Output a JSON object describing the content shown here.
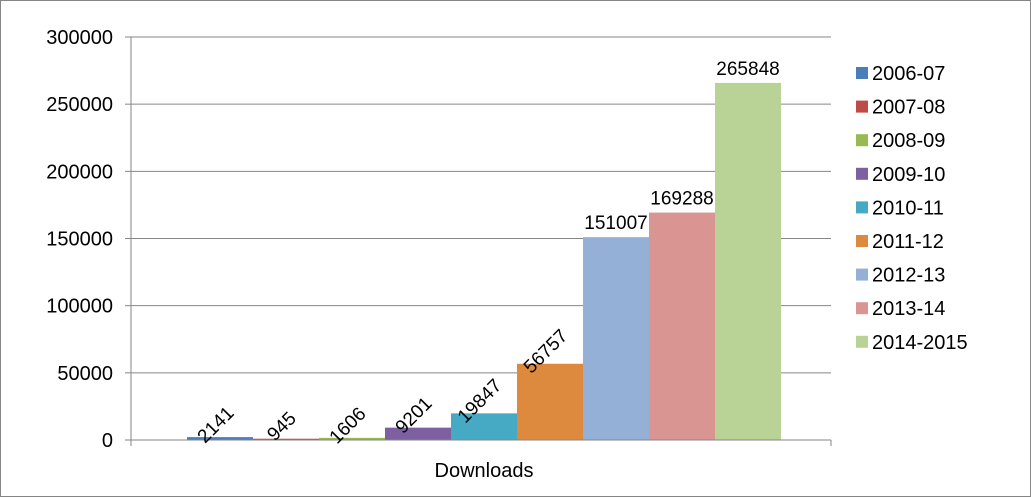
{
  "chart_data": {
    "type": "bar",
    "categories": [
      "Downloads"
    ],
    "xlabel": "",
    "ylabel": "",
    "title": "",
    "ylim": [
      0,
      300000
    ],
    "yticks": [
      "0",
      "50000",
      "100000",
      "150000",
      "200000",
      "250000",
      "300000"
    ],
    "grid": true,
    "legend_position": "right",
    "category_label": "Downloads",
    "series": [
      {
        "name": "2006-07",
        "values": [
          2141
        ],
        "label": "2141",
        "color": "#4a7ebb",
        "label_rotated": true
      },
      {
        "name": "2007-08",
        "values": [
          945
        ],
        "label": "945",
        "color": "#be4b48",
        "label_rotated": true
      },
      {
        "name": "2008-09",
        "values": [
          1606
        ],
        "label": "1606",
        "color": "#98b954",
        "label_rotated": true
      },
      {
        "name": "2009-10",
        "values": [
          9201
        ],
        "label": "9201",
        "color": "#7d60a0",
        "label_rotated": true
      },
      {
        "name": "2010-11",
        "values": [
          19847
        ],
        "label": "19847",
        "color": "#46aac5",
        "label_rotated": true
      },
      {
        "name": "2011-12",
        "values": [
          56757
        ],
        "label": "56757",
        "color": "#dd8a3e",
        "label_rotated": true
      },
      {
        "name": "2012-13",
        "values": [
          151007
        ],
        "label": "151007",
        "color": "#95b0d6",
        "label_rotated": false
      },
      {
        "name": "2013-14",
        "values": [
          169288
        ],
        "label": "169288",
        "color": "#d89592",
        "label_rotated": false
      },
      {
        "name": "2014-2015",
        "values": [
          265848
        ],
        "label": "265848",
        "color": "#b9d295",
        "label_rotated": false
      }
    ]
  }
}
